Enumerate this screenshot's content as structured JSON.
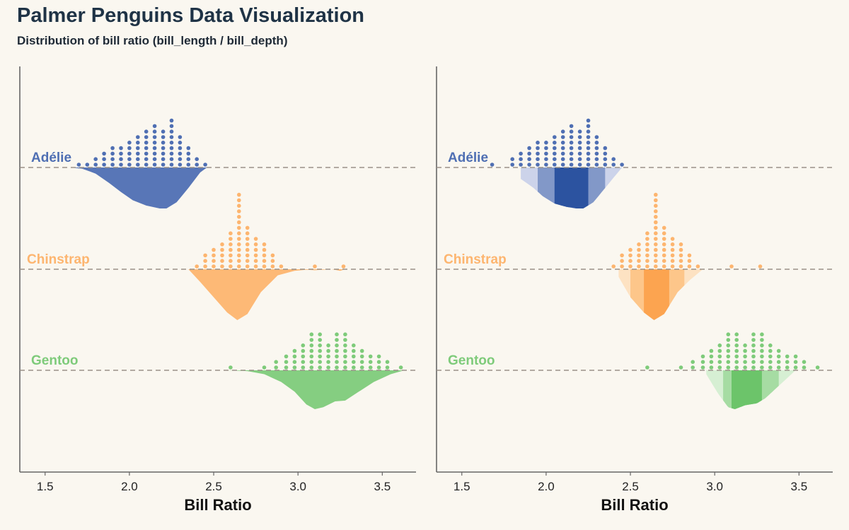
{
  "header": {
    "title": "Palmer Penguins Data Visualization",
    "subtitle": "Distribution of bill ratio (bill_length / bill_depth)"
  },
  "chart_data": [
    {
      "type": "dotplot-halfeye",
      "panel": "left",
      "xlabel": "Bill Ratio",
      "xlim": [
        1.35,
        3.7
      ],
      "xticks": [
        1.5,
        2.0,
        2.5,
        3.0,
        3.5
      ],
      "tick_labels": [
        "1.5",
        "2.0",
        "2.5",
        "3.0",
        "3.5"
      ],
      "interval_bands": false,
      "series": [
        {
          "name": "Adélie",
          "color": "#4f6fb3",
          "x": [
            1.7,
            1.75,
            1.8,
            1.85,
            1.9,
            1.95,
            2.0,
            2.05,
            2.1,
            2.15,
            2.2,
            2.25,
            2.3,
            2.35,
            2.4,
            2.45
          ],
          "counts": [
            1,
            1,
            2,
            3,
            4,
            4,
            5,
            6,
            7,
            8,
            7,
            9,
            6,
            4,
            2,
            1
          ],
          "density_x": [
            1.65,
            1.72,
            1.8,
            1.88,
            1.95,
            2.02,
            2.1,
            2.18,
            2.22,
            2.28,
            2.35,
            2.42,
            2.46
          ],
          "density_y": [
            0.0,
            0.03,
            0.15,
            0.38,
            0.6,
            0.8,
            0.93,
            1.0,
            1.0,
            0.85,
            0.5,
            0.12,
            0.0
          ]
        },
        {
          "name": "Chinstrap",
          "color": "#fdb56f",
          "x": [
            2.4,
            2.45,
            2.5,
            2.55,
            2.6,
            2.65,
            2.7,
            2.75,
            2.8,
            2.85,
            2.9,
            3.1,
            3.27
          ],
          "counts": [
            1,
            3,
            4,
            5,
            7,
            14,
            8,
            6,
            5,
            3,
            1,
            1,
            1
          ],
          "density_x": [
            2.35,
            2.42,
            2.5,
            2.58,
            2.64,
            2.7,
            2.78,
            2.88,
            2.98,
            3.05,
            3.1,
            3.2,
            3.25,
            3.28
          ],
          "density_y": [
            0.0,
            0.25,
            0.55,
            0.85,
            1.0,
            0.88,
            0.45,
            0.12,
            0.03,
            0.01,
            0.02,
            0.0,
            0.03,
            0.0
          ]
        },
        {
          "name": "Gentoo",
          "color": "#7ecb7a",
          "x": [
            2.6,
            2.8,
            2.87,
            2.93,
            2.98,
            3.03,
            3.08,
            3.13,
            3.18,
            3.23,
            3.28,
            3.33,
            3.38,
            3.43,
            3.48,
            3.53,
            3.61
          ],
          "counts": [
            1,
            1,
            2,
            3,
            4,
            5,
            7,
            7,
            5,
            7,
            7,
            5,
            4,
            3,
            3,
            2,
            1
          ],
          "density_x": [
            2.58,
            2.7,
            2.8,
            2.9,
            2.98,
            3.05,
            3.1,
            3.15,
            3.22,
            3.28,
            3.35,
            3.45,
            3.55,
            3.63
          ],
          "density_y": [
            0.0,
            0.02,
            0.1,
            0.3,
            0.55,
            0.88,
            1.0,
            0.95,
            0.8,
            0.78,
            0.58,
            0.3,
            0.1,
            0.0
          ]
        }
      ]
    },
    {
      "type": "dotplot-halfeye",
      "panel": "right",
      "xlabel": "Bill Ratio",
      "xlim": [
        1.35,
        3.7
      ],
      "xticks": [
        1.5,
        2.0,
        2.5,
        3.0,
        3.5
      ],
      "tick_labels": [
        "1.5",
        "2.0",
        "2.5",
        "3.0",
        "3.5"
      ],
      "interval_bands": true,
      "series": [
        {
          "name": "Adélie",
          "color": "#4f6fb3",
          "band_colors": [
            "#ccd3ea",
            "#8298c8",
            "#2c53a0"
          ],
          "bands": [
            [
              1.85,
              2.45
            ],
            [
              1.95,
              2.35
            ],
            [
              2.05,
              2.25
            ]
          ],
          "x": [
            1.68,
            1.8,
            1.85,
            1.9,
            1.95,
            2.0,
            2.05,
            2.1,
            2.15,
            2.2,
            2.25,
            2.3,
            2.35,
            2.4,
            2.45
          ],
          "counts": [
            1,
            2,
            3,
            4,
            5,
            5,
            6,
            7,
            8,
            7,
            9,
            6,
            4,
            2,
            1
          ],
          "density_x": [
            1.85,
            1.92,
            1.98,
            2.05,
            2.12,
            2.18,
            2.22,
            2.28,
            2.35,
            2.45
          ],
          "density_y": [
            0.28,
            0.48,
            0.7,
            0.88,
            0.96,
            1.0,
            1.0,
            0.85,
            0.5,
            0.0
          ]
        },
        {
          "name": "Chinstrap",
          "color": "#fdb56f",
          "band_colors": [
            "#fde2c2",
            "#fdc68a",
            "#fca450"
          ],
          "bands": [
            [
              2.43,
              2.93
            ],
            [
              2.5,
              2.82
            ],
            [
              2.58,
              2.73
            ]
          ],
          "x": [
            2.4,
            2.45,
            2.5,
            2.55,
            2.6,
            2.65,
            2.7,
            2.75,
            2.8,
            2.85,
            2.9,
            3.1,
            3.27
          ],
          "counts": [
            1,
            3,
            4,
            5,
            7,
            14,
            8,
            6,
            5,
            3,
            1,
            1,
            1
          ],
          "density_x": [
            2.43,
            2.5,
            2.58,
            2.64,
            2.7,
            2.78,
            2.85,
            2.93
          ],
          "density_y": [
            0.15,
            0.55,
            0.85,
            1.0,
            0.88,
            0.45,
            0.22,
            0.0
          ]
        },
        {
          "name": "Gentoo",
          "color": "#7ecb7a",
          "band_colors": [
            "#d6efd3",
            "#a6dca3",
            "#6cc46a"
          ],
          "bands": [
            [
              2.95,
              3.48
            ],
            [
              3.05,
              3.38
            ],
            [
              3.1,
              3.28
            ]
          ],
          "x": [
            2.6,
            2.8,
            2.87,
            2.93,
            2.98,
            3.03,
            3.08,
            3.13,
            3.18,
            3.23,
            3.28,
            3.33,
            3.38,
            3.43,
            3.48,
            3.53,
            3.61
          ],
          "counts": [
            1,
            1,
            2,
            3,
            4,
            5,
            7,
            7,
            5,
            7,
            7,
            5,
            4,
            3,
            3,
            2,
            1
          ],
          "density_x": [
            2.95,
            3.02,
            3.08,
            3.12,
            3.18,
            3.25,
            3.3,
            3.38,
            3.48
          ],
          "density_y": [
            0.1,
            0.6,
            0.95,
            1.0,
            0.9,
            0.85,
            0.72,
            0.4,
            0.0
          ]
        }
      ]
    }
  ]
}
